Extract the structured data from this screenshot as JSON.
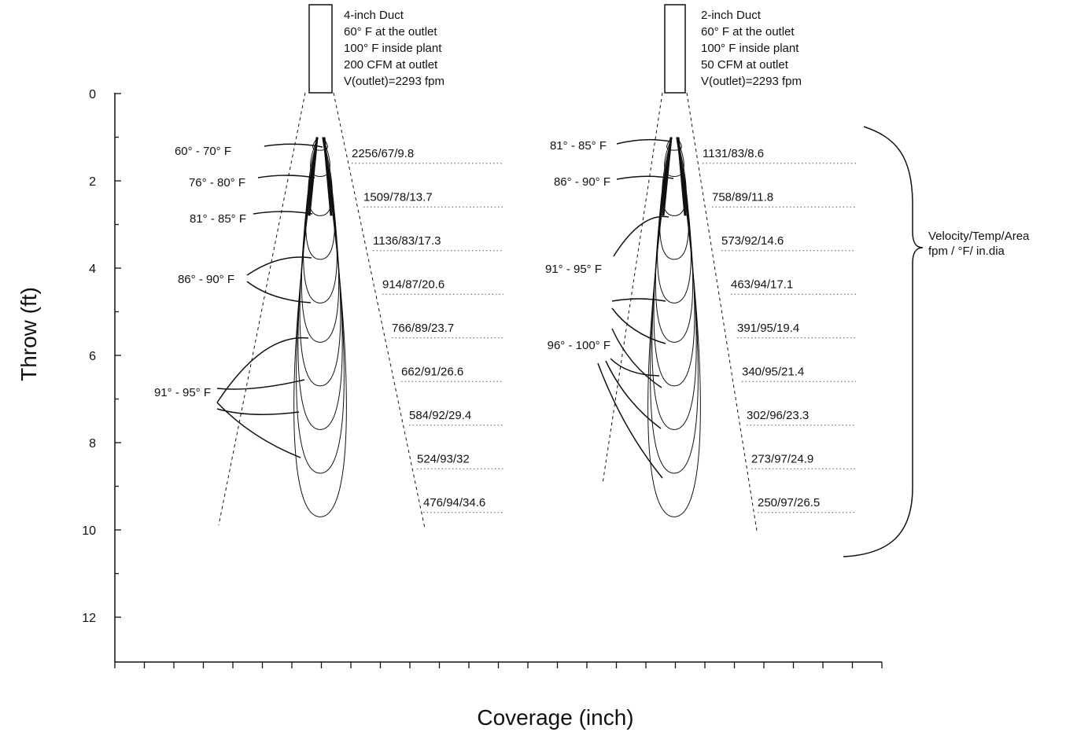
{
  "chart_data": {
    "type": "line",
    "xlabel": "Coverage (inch)",
    "ylabel": "Throw (ft)",
    "y_ticks": [
      "0",
      "2",
      "4",
      "6",
      "8",
      "10",
      "12"
    ],
    "ylim": [
      0,
      13
    ],
    "y_inverted": true,
    "x_tick_count": 27,
    "bracket_label": [
      "Velocity/Temp/Area",
      "fpm /  °F/ in.dia"
    ],
    "panels": [
      {
        "duct_info": [
          "4-inch Duct",
          "60° F at the outlet",
          "100° F inside plant",
          "200 CFM at outlet",
          "V(outlet)=2293 fpm"
        ],
        "temp_labels": [
          "60° - 70°  F",
          "76° - 80°  F",
          "81° - 85°  F",
          "86° - 90°  F",
          "91° - 95°  F"
        ],
        "contour_depths_ft": [
          1.3,
          1.9,
          2.8,
          3.8,
          4.8,
          5.7,
          6.7,
          7.7,
          8.7,
          9.7
        ],
        "readings": [
          {
            "throw_ft": 1.6,
            "text": "2256/67/9.8"
          },
          {
            "throw_ft": 2.6,
            "text": "1509/78/13.7"
          },
          {
            "throw_ft": 3.6,
            "text": "1136/83/17.3"
          },
          {
            "throw_ft": 4.6,
            "text": "914/87/20.6"
          },
          {
            "throw_ft": 5.6,
            "text": "766/89/23.7"
          },
          {
            "throw_ft": 6.6,
            "text": "662/91/26.6"
          },
          {
            "throw_ft": 7.6,
            "text": "584/92/29.4"
          },
          {
            "throw_ft": 8.6,
            "text": "524/93/32"
          },
          {
            "throw_ft": 9.6,
            "text": "476/94/34.6"
          }
        ]
      },
      {
        "duct_info": [
          "2-inch Duct",
          "60° F at the outlet",
          "100° F inside plant",
          "50 CFM at outlet",
          "V(outlet)=2293 fpm"
        ],
        "temp_labels": [
          "81° - 85°  F",
          "86° - 90°  F",
          "91° - 95°  F",
          "96° - 100°  F"
        ],
        "contour_depths_ft": [
          1.3,
          1.9,
          2.8,
          3.8,
          4.8,
          5.7,
          6.7,
          7.7,
          8.7,
          9.7
        ],
        "readings": [
          {
            "throw_ft": 1.6,
            "text": "1131/83/8.6"
          },
          {
            "throw_ft": 2.6,
            "text": "758/89/11.8"
          },
          {
            "throw_ft": 3.6,
            "text": "573/92/14.6"
          },
          {
            "throw_ft": 4.6,
            "text": "463/94/17.1"
          },
          {
            "throw_ft": 5.6,
            "text": "391/95/19.4"
          },
          {
            "throw_ft": 6.6,
            "text": "340/95/21.4"
          },
          {
            "throw_ft": 7.6,
            "text": "302/96/23.3"
          },
          {
            "throw_ft": 8.6,
            "text": "273/97/24.9"
          },
          {
            "throw_ft": 9.6,
            "text": "250/97/26.5"
          }
        ]
      }
    ]
  }
}
